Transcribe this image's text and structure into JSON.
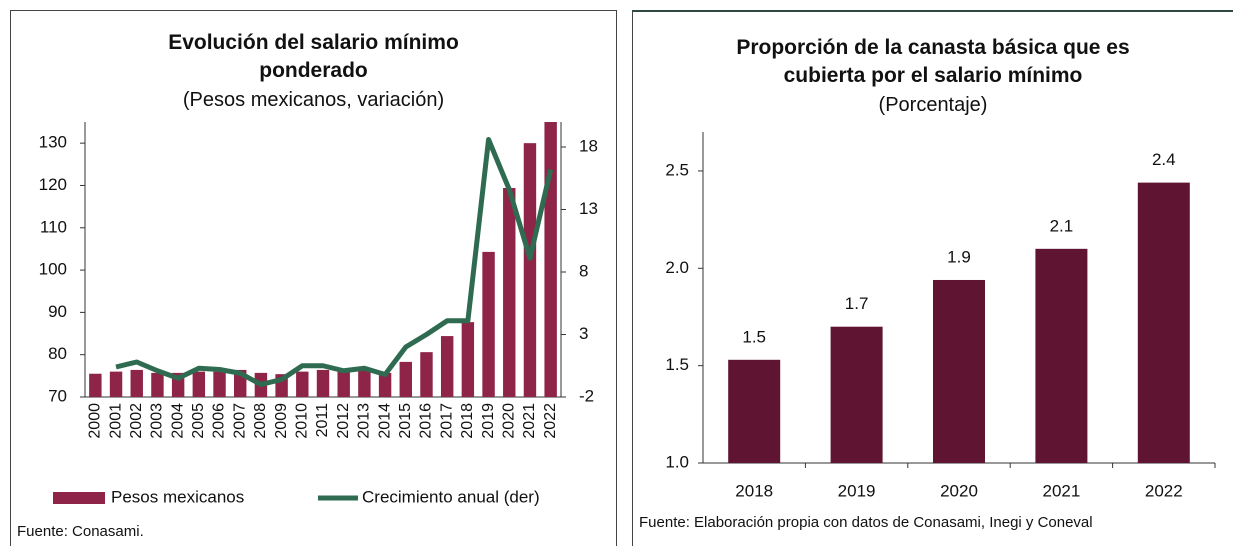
{
  "chart_data": [
    {
      "type": "combo",
      "title": "Evolución del salario mínimo ponderado",
      "subtitle": "(Pesos mexicanos, variación)",
      "categories": [
        "2000",
        "2001",
        "2002",
        "2003",
        "2004",
        "2005",
        "2006",
        "2007",
        "2008",
        "2009",
        "2010",
        "2011",
        "2012",
        "2013",
        "2014",
        "2015",
        "2016",
        "2017",
        "2018",
        "2019",
        "2020",
        "2021",
        "2022"
      ],
      "series": [
        {
          "name": "Pesos mexicanos",
          "type": "bar",
          "color": "#8e2448",
          "values": [
            75.5,
            76,
            76.4,
            75.7,
            75.7,
            76,
            76,
            76.4,
            75.7,
            75.4,
            76,
            76.4,
            76,
            76.4,
            75.7,
            78.3,
            80.6,
            84.4,
            87.7,
            104.3,
            119.4,
            130,
            135
          ]
        },
        {
          "name": "Crecimiento anual (der)",
          "type": "line",
          "axis": "y2",
          "color": "#2f6b50",
          "values": [
            null,
            0.4,
            0.8,
            0.1,
            -0.5,
            0.3,
            0.2,
            -0.1,
            -1,
            -0.6,
            0.5,
            0.5,
            0.1,
            0.3,
            -0.2,
            2.0,
            3.0,
            4.1,
            4.1,
            18.6,
            14.6,
            9.1,
            16.2
          ]
        }
      ],
      "ylim": [
        70,
        135
      ],
      "yticks": [
        70,
        80,
        90,
        100,
        110,
        120,
        130
      ],
      "y2lim": [
        -2,
        20
      ],
      "y2ticks": [
        -2,
        3,
        8,
        13,
        18
      ],
      "legend": "bottom",
      "source": "Fuente: Conasami."
    },
    {
      "type": "bar",
      "title": "Proporción de la canasta básica que es cubierta por el salario mínimo",
      "subtitle": "(Porcentaje)",
      "categories": [
        "2018",
        "2019",
        "2020",
        "2021",
        "2022"
      ],
      "values": [
        1.53,
        1.7,
        1.94,
        2.1,
        2.44
      ],
      "value_labels": [
        "1.5",
        "1.7",
        "1.9",
        "2.1",
        "2.4"
      ],
      "color": "#5f1432",
      "ylim": [
        1.0,
        2.7
      ],
      "yticks": [
        {
          "value": 1,
          "label": "1.0"
        },
        1.5,
        {
          "value": 2,
          "label": "2.0"
        },
        2.5
      ],
      "source": "Fuente: Elaboración propia con datos de Conasami, Inegi y Coneval"
    }
  ]
}
